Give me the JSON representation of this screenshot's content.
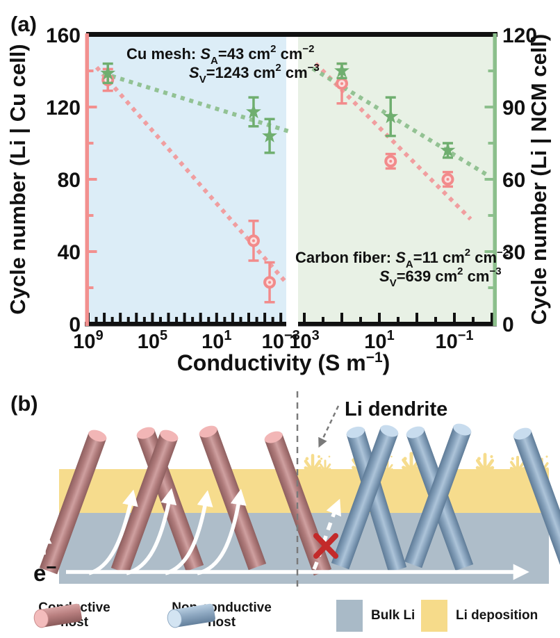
{
  "figure": {
    "panel_a_label": "(a)",
    "panel_b_label": "(b)"
  },
  "chart_data": {
    "type": "scatter",
    "x_axis": {
      "label": "Conductivity (S m⁻¹)",
      "title_parts": [
        "Conductivity (S m",
        "−1",
        ")"
      ],
      "scale": "log",
      "segments": [
        {
          "name": "Cu mesh region",
          "background": "#dcedf7",
          "tick_label_exponents": [
            9,
            5,
            1,
            -3
          ],
          "decade_start": 9,
          "decade_end": -3
        },
        {
          "name": "Carbon fiber region",
          "background": "#e8f1e5",
          "tick_label_exponents": [
            3,
            1,
            -1
          ],
          "decade_start": 3,
          "decade_end": -2
        }
      ]
    },
    "y_left_axis": {
      "title": "Cycle number (Li | Cu cell)",
      "color": "#f2908f",
      "min": 0,
      "max": 160,
      "major_ticks": [
        0,
        40,
        80,
        120,
        160
      ],
      "minor_ticks": [
        20,
        60,
        100,
        140
      ]
    },
    "y_right_axis": {
      "title": "Cycle number (Li | NCM cell)",
      "color": "#8cbf8c",
      "min": 0,
      "max": 120,
      "major_ticks": [
        0,
        30,
        60,
        90,
        120
      ],
      "minor_ticks": [
        15,
        45,
        75,
        105
      ]
    },
    "series": [
      {
        "name": "Li | Cu cell",
        "axis": "left",
        "marker": "circle",
        "color": "#f28b8b",
        "trend_color": "#f29a9c",
        "points": [
          {
            "segment": 0,
            "conductivity": 60000000,
            "cycles": 135,
            "error": 6
          },
          {
            "segment": 0,
            "conductivity": 0.05,
            "cycles": 46,
            "error": 11
          },
          {
            "segment": 0,
            "conductivity": 0.005,
            "cycles": 23,
            "error": 11
          },
          {
            "segment": 1,
            "conductivity": 100,
            "cycles": 133,
            "error": 11
          },
          {
            "segment": 1,
            "conductivity": 5,
            "cycles": 90,
            "error": 4
          },
          {
            "segment": 1,
            "conductivity": 0.15,
            "cycles": 80,
            "error": 4
          }
        ],
        "trend_lines": [
          {
            "segment": 0,
            "x1": 300000000,
            "y1": 142,
            "x2": 0.0006,
            "y2": 24
          },
          {
            "segment": 1,
            "x1": 500,
            "y1": 144,
            "x2": 0.037,
            "y2": 58
          }
        ]
      },
      {
        "name": "Li | NCM cell",
        "axis": "right",
        "marker": "star",
        "color": "#6fae6f",
        "trend_color": "#8fc08f",
        "points": [
          {
            "segment": 0,
            "conductivity": 60000000,
            "cycles": 104,
            "error": 4
          },
          {
            "segment": 0,
            "conductivity": 0.05,
            "cycles": 88,
            "error": 6
          },
          {
            "segment": 0,
            "conductivity": 0.005,
            "cycles": 78,
            "error": 7
          },
          {
            "segment": 1,
            "conductivity": 100,
            "cycles": 105,
            "error": 3
          },
          {
            "segment": 1,
            "conductivity": 5,
            "cycles": 86,
            "error": 8
          },
          {
            "segment": 1,
            "conductivity": 0.15,
            "cycles": 72,
            "error": 3
          }
        ],
        "trend_lines": [
          {
            "segment": 0,
            "x1": 120000000,
            "y1": 104,
            "x2": 0.00035,
            "y2": 80
          },
          {
            "segment": 1,
            "x1": 600,
            "y1": 106,
            "x2": 0.014,
            "y2": 62
          }
        ]
      }
    ],
    "annotations": {
      "cu_mesh": {
        "line1": [
          "Cu mesh: ",
          "S",
          "A",
          "=43 cm",
          "2",
          " cm",
          "−2"
        ],
        "line2": [
          "S",
          "V",
          "=1243 cm",
          "2",
          " cm",
          "−3"
        ]
      },
      "carbon_fiber": {
        "line1": [
          "Carbon fiber: ",
          "S",
          "A",
          "=11 cm",
          "2",
          " cm",
          "−2"
        ],
        "line2": [
          "S",
          "V",
          "=639 cm",
          "2",
          " cm",
          "−3"
        ]
      }
    }
  },
  "panel_b": {
    "li_dendrite_label": "Li dendrite",
    "electron_label": "e",
    "electron_sup": "−",
    "legend": [
      {
        "icon": "cylinder-pink",
        "label": "Conductive host"
      },
      {
        "icon": "cylinder-blue",
        "label": "Non-conductive host"
      },
      {
        "icon": "square-gray",
        "label": "Bulk Li"
      },
      {
        "icon": "square-yellow",
        "label": "Li deposition"
      }
    ]
  },
  "colors": {
    "left_axis": "#f2908f",
    "right_axis": "#8cbf8c",
    "axis_black": "#111111",
    "cu_region_bg": "#dcedf7",
    "carbon_region_bg": "#e8f1e5",
    "bulk_li": "#aebdc9",
    "li_deposition": "#f6dc8d",
    "conductive_rod": "#b5807f",
    "nonconductive_rod": "#87a2bc",
    "red_cross": "#c32a2a"
  }
}
